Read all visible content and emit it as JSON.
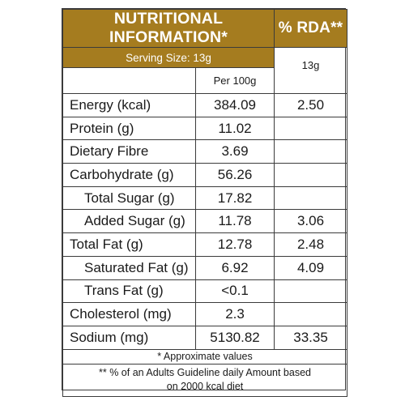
{
  "header": {
    "title": "NUTRITIONAL INFORMATION*",
    "rda_title": "% RDA**",
    "serving_size": "Serving Size: 13g",
    "rda_serving": "13g",
    "per_100g": "Per 100g",
    "accent_color": "#a57c1f"
  },
  "rows": [
    {
      "label": "Energy (kcal)",
      "per100": "384.09",
      "rda": "2.50",
      "indent": false
    },
    {
      "label": "Protein (g)",
      "per100": "11.02",
      "rda": "",
      "indent": false
    },
    {
      "label": "Dietary Fibre",
      "per100": "3.69",
      "rda": "",
      "indent": false
    },
    {
      "label": "Carbohydrate (g)",
      "per100": "56.26",
      "rda": "",
      "indent": false
    },
    {
      "label": "Total Sugar (g)",
      "per100": "17.82",
      "rda": "",
      "indent": true
    },
    {
      "label": "Added Sugar (g)",
      "per100": "11.78",
      "rda": "3.06",
      "indent": true
    },
    {
      "label": "Total Fat (g)",
      "per100": "12.78",
      "rda": "2.48",
      "indent": false
    },
    {
      "label": "Saturated Fat (g)",
      "per100": "6.92",
      "rda": "4.09",
      "indent": true
    },
    {
      "label": "Trans Fat (g)",
      "per100": "<0.1",
      "rda": "",
      "indent": true
    },
    {
      "label": "Cholesterol (mg)",
      "per100": "2.3",
      "rda": "",
      "indent": false
    },
    {
      "label": "Sodium (mg)",
      "per100": "5130.82",
      "rda": "33.35",
      "indent": false
    }
  ],
  "footer": {
    "approx": "* Approximate values",
    "note_line1": "** % of an Adults Guideline daily Amount based",
    "note_line2": "on 2000 kcal diet"
  }
}
